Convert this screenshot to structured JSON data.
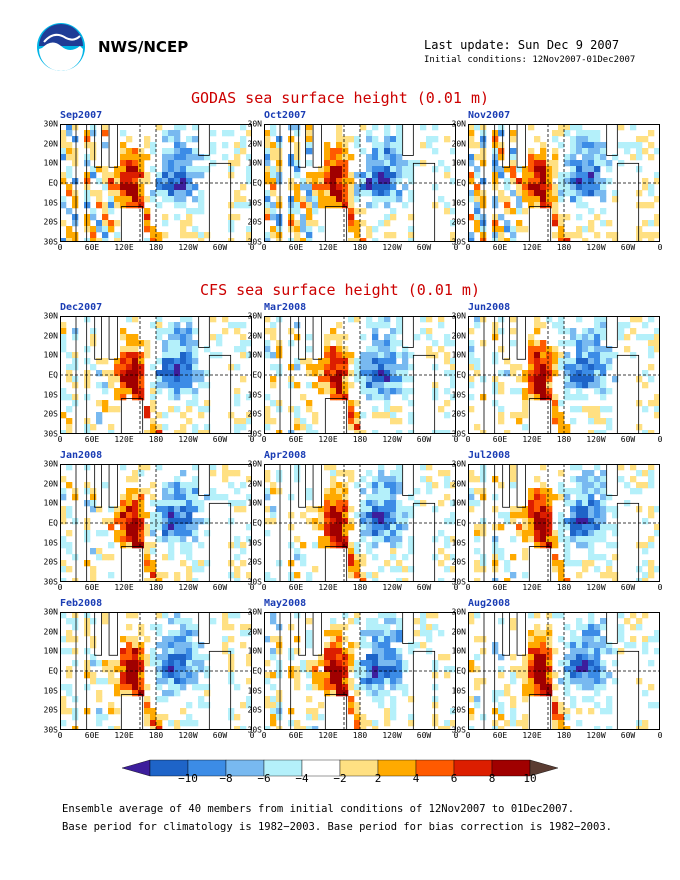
{
  "header": {
    "agency": "NWS/NCEP",
    "last_update": "Last update: Sun Dec  9 2007",
    "initial_conditions": "Initial conditions: 12Nov2007-01Dec2007"
  },
  "godas": {
    "title": "GODAS sea surface height (0.01 m)",
    "panels": [
      "Sep2007",
      "Oct2007",
      "Nov2007"
    ]
  },
  "cfs": {
    "title": "CFS sea surface height (0.01 m)",
    "panels": [
      "Dec2007",
      "Mar2008",
      "Jun2008",
      "Jan2008",
      "Apr2008",
      "Jul2008",
      "Feb2008",
      "May2008",
      "Aug2008"
    ]
  },
  "axes": {
    "y_labels": [
      "30N",
      "20N",
      "10N",
      "EQ",
      "10S",
      "20S",
      "30S"
    ],
    "x_labels": [
      "0",
      "60E",
      "120E",
      "180",
      "120W",
      "60W",
      "0"
    ]
  },
  "colorbar": {
    "labels": [
      "−10",
      "−8",
      "−6",
      "−4",
      "−2",
      "2",
      "4",
      "6",
      "8",
      "10"
    ],
    "colors": [
      "#3d1e9c",
      "#1e64c8",
      "#3c8ce6",
      "#78b9f0",
      "#b4f0fa",
      "#ffffff",
      "#ffe082",
      "#ffaa00",
      "#ff5a00",
      "#dc1e00",
      "#a00000",
      "#5a3c32"
    ]
  },
  "footer": {
    "line1": "Ensemble average of 40 members from initial conditions of 12Nov2007 to 01Dec2007.",
    "line2": "Base period for climatology is 1982−2003. Base period for bias correction is 1982−2003."
  }
}
